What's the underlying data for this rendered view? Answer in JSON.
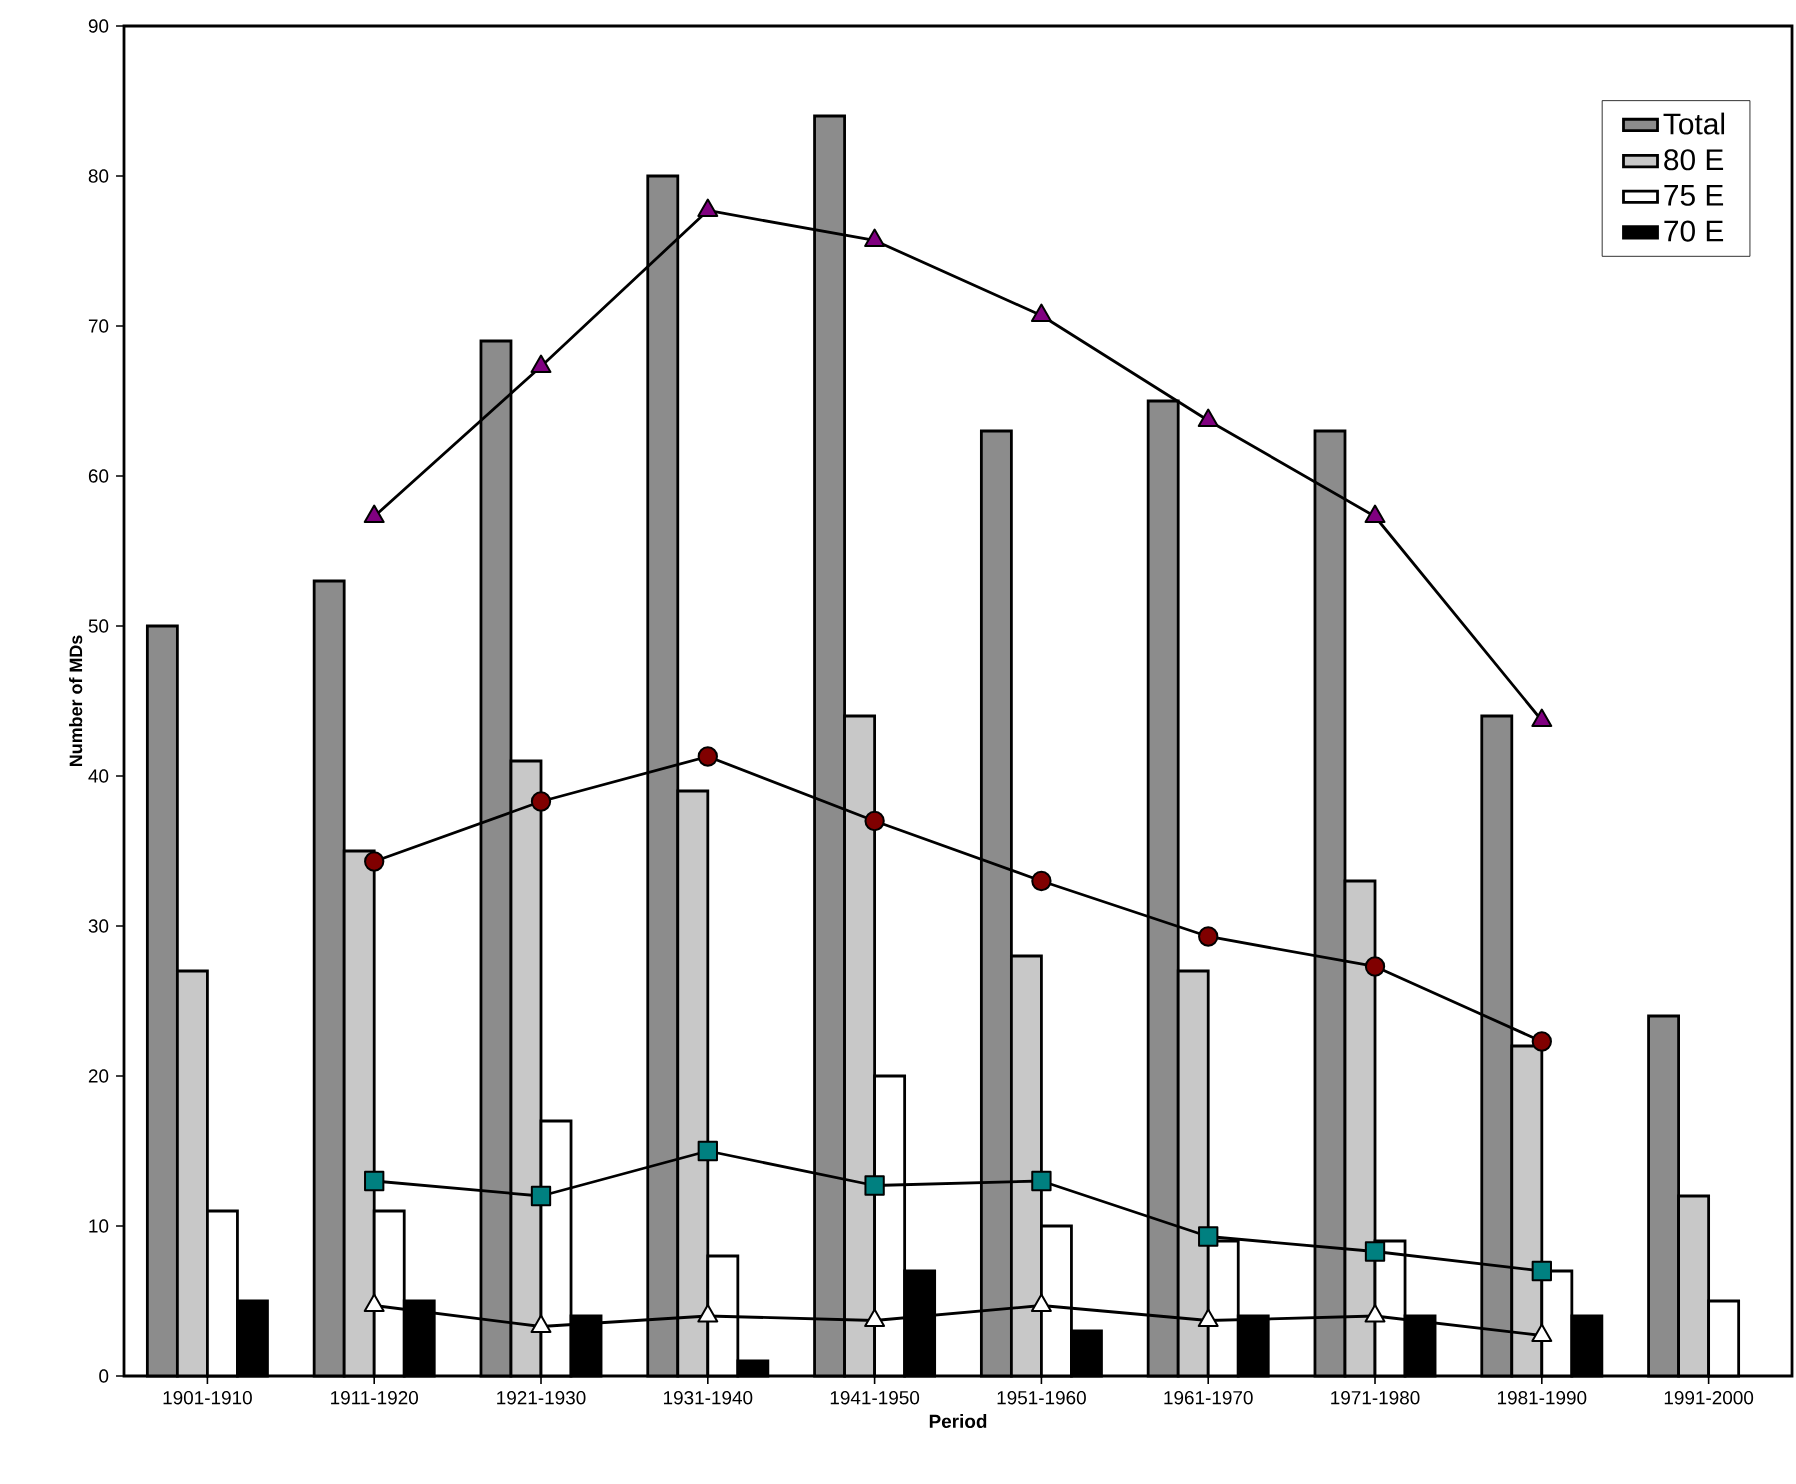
{
  "chart_data": {
    "type": "bar",
    "xlabel": "Period",
    "ylabel": "Number of MDs",
    "categories": [
      "1901-1910",
      "1911-1920",
      "1921-1930",
      "1931-1940",
      "1941-1950",
      "1951-1960",
      "1961-1970",
      "1971-1980",
      "1981-1990",
      "1991-2000"
    ],
    "series": [
      {
        "name": "Total",
        "color": "#8c8c8c",
        "values": [
          50,
          53,
          69,
          80,
          84,
          63,
          65,
          63,
          44,
          24
        ]
      },
      {
        "name": "80 E",
        "color": "#c8c8c8",
        "values": [
          27,
          35,
          41,
          39,
          44,
          28,
          27,
          33,
          22,
          12
        ]
      },
      {
        "name": "75 E",
        "color": "#ffffff",
        "values": [
          11,
          11,
          17,
          8,
          20,
          10,
          9,
          9,
          7,
          5
        ]
      },
      {
        "name": "70 E",
        "color": "#000000",
        "values": [
          5,
          5,
          4,
          1,
          7,
          3,
          4,
          4,
          4,
          null
        ]
      },
      {
        "type": "line",
        "marker": "triangle",
        "color": "#800080",
        "values": [
          null,
          57.3,
          67.3,
          77.7,
          75.7,
          70.7,
          63.7,
          57.3,
          43.7,
          null
        ]
      },
      {
        "type": "line",
        "marker": "circle",
        "color": "#800000",
        "values": [
          null,
          34.3,
          38.3,
          41.3,
          37,
          33,
          29.3,
          27.3,
          22.3,
          null
        ]
      },
      {
        "type": "line",
        "marker": "square",
        "color": "#008080",
        "values": [
          null,
          13,
          12,
          15,
          12.7,
          13,
          9.3,
          8.3,
          7,
          null
        ]
      },
      {
        "type": "line",
        "marker": "triangle",
        "color": "#ffffff",
        "values": [
          null,
          4.7,
          3.3,
          4,
          3.7,
          4.7,
          3.7,
          4,
          2.7,
          null
        ]
      }
    ],
    "ylim": [
      0,
      90
    ],
    "yticks": [
      0,
      10,
      20,
      30,
      40,
      50,
      60,
      70,
      80,
      90
    ],
    "grid": false,
    "legend": "top right"
  }
}
